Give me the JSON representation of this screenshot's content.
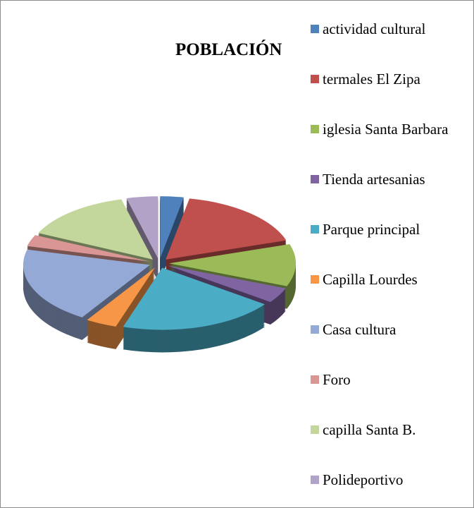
{
  "chart_data": {
    "type": "pie3d",
    "title": "POBLACIÓN",
    "categories": [
      "actividad cultural",
      "termales El Zipa",
      "iglesia Santa Barbara",
      "Tienda artesanias",
      "Parque principal",
      "Capilla Lourdes",
      "Casa cultura",
      "Foro",
      "capilla Santa B.",
      "Polideportivo"
    ],
    "values": [
      3,
      17,
      11,
      4,
      20,
      4,
      20,
      3,
      14,
      4
    ],
    "colors": [
      "#4F81BD",
      "#C0504D",
      "#9BBB59",
      "#8064A2",
      "#4BACC6",
      "#F79646",
      "#95A9D6",
      "#D99694",
      "#C3D69B",
      "#B3A2C7"
    ],
    "legend": "right"
  }
}
